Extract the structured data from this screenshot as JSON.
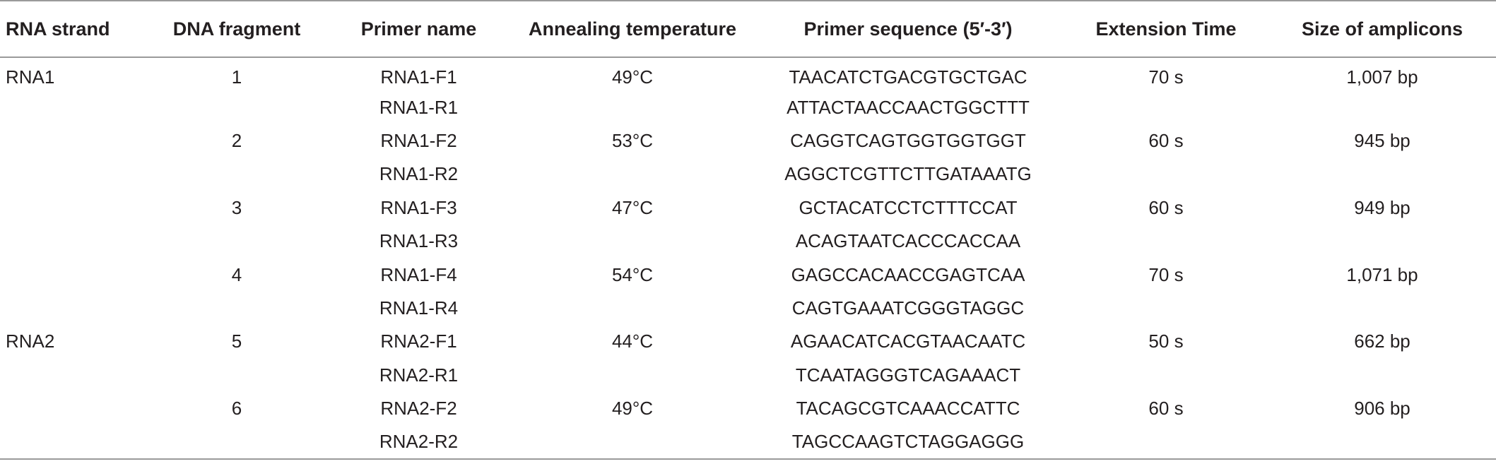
{
  "columns": [
    "RNA strand",
    "DNA fragment",
    "Primer name",
    "Annealing temperature",
    "Primer sequence (5′-3′)",
    "Extension Time",
    "Size of amplicons"
  ],
  "rows": [
    [
      "RNA1",
      "1",
      "RNA1-F1",
      "49°C",
      "TAACATCTGACGTGCTGAC",
      "70 s",
      "1,007 bp"
    ],
    [
      "",
      "",
      "RNA1-R1",
      "",
      "ATTACTAACCAACTGGCTTT",
      "",
      ""
    ],
    [
      "",
      "2",
      "RNA1-F2",
      "53°C",
      "CAGGTCAGTGGTGGTGGT",
      "60 s",
      "945 bp"
    ],
    [
      "",
      "",
      "RNA1-R2",
      "",
      "AGGCTCGTTCTTGATAAATG",
      "",
      ""
    ],
    [
      "",
      "3",
      "RNA1-F3",
      "47°C",
      "GCTACATCCTCTTTCCAT",
      "60 s",
      "949 bp"
    ],
    [
      "",
      "",
      "RNA1-R3",
      "",
      "ACAGTAATCACCCACCAA",
      "",
      ""
    ],
    [
      "",
      "4",
      "RNA1-F4",
      "54°C",
      "GAGCCACAACCGAGTCAA",
      "70 s",
      "1,071 bp"
    ],
    [
      "",
      "",
      "RNA1-R4",
      "",
      "CAGTGAAATCGGGTAGGC",
      "",
      ""
    ],
    [
      "RNA2",
      "5",
      "RNA2-F1",
      "44°C",
      "AGAACATCACGTAACAATC",
      "50 s",
      "662 bp"
    ],
    [
      "",
      "",
      "RNA2-R1",
      "",
      "TCAATAGGGTCAGAAACT",
      "",
      ""
    ],
    [
      "",
      "6",
      "RNA2-F2",
      "49°C",
      "TACAGCGTCAAACCATTC",
      "60 s",
      "906 bp"
    ],
    [
      "",
      "",
      "RNA2-R2",
      "",
      "TAGCCAAGTCTAGGAGGG",
      "",
      ""
    ]
  ]
}
